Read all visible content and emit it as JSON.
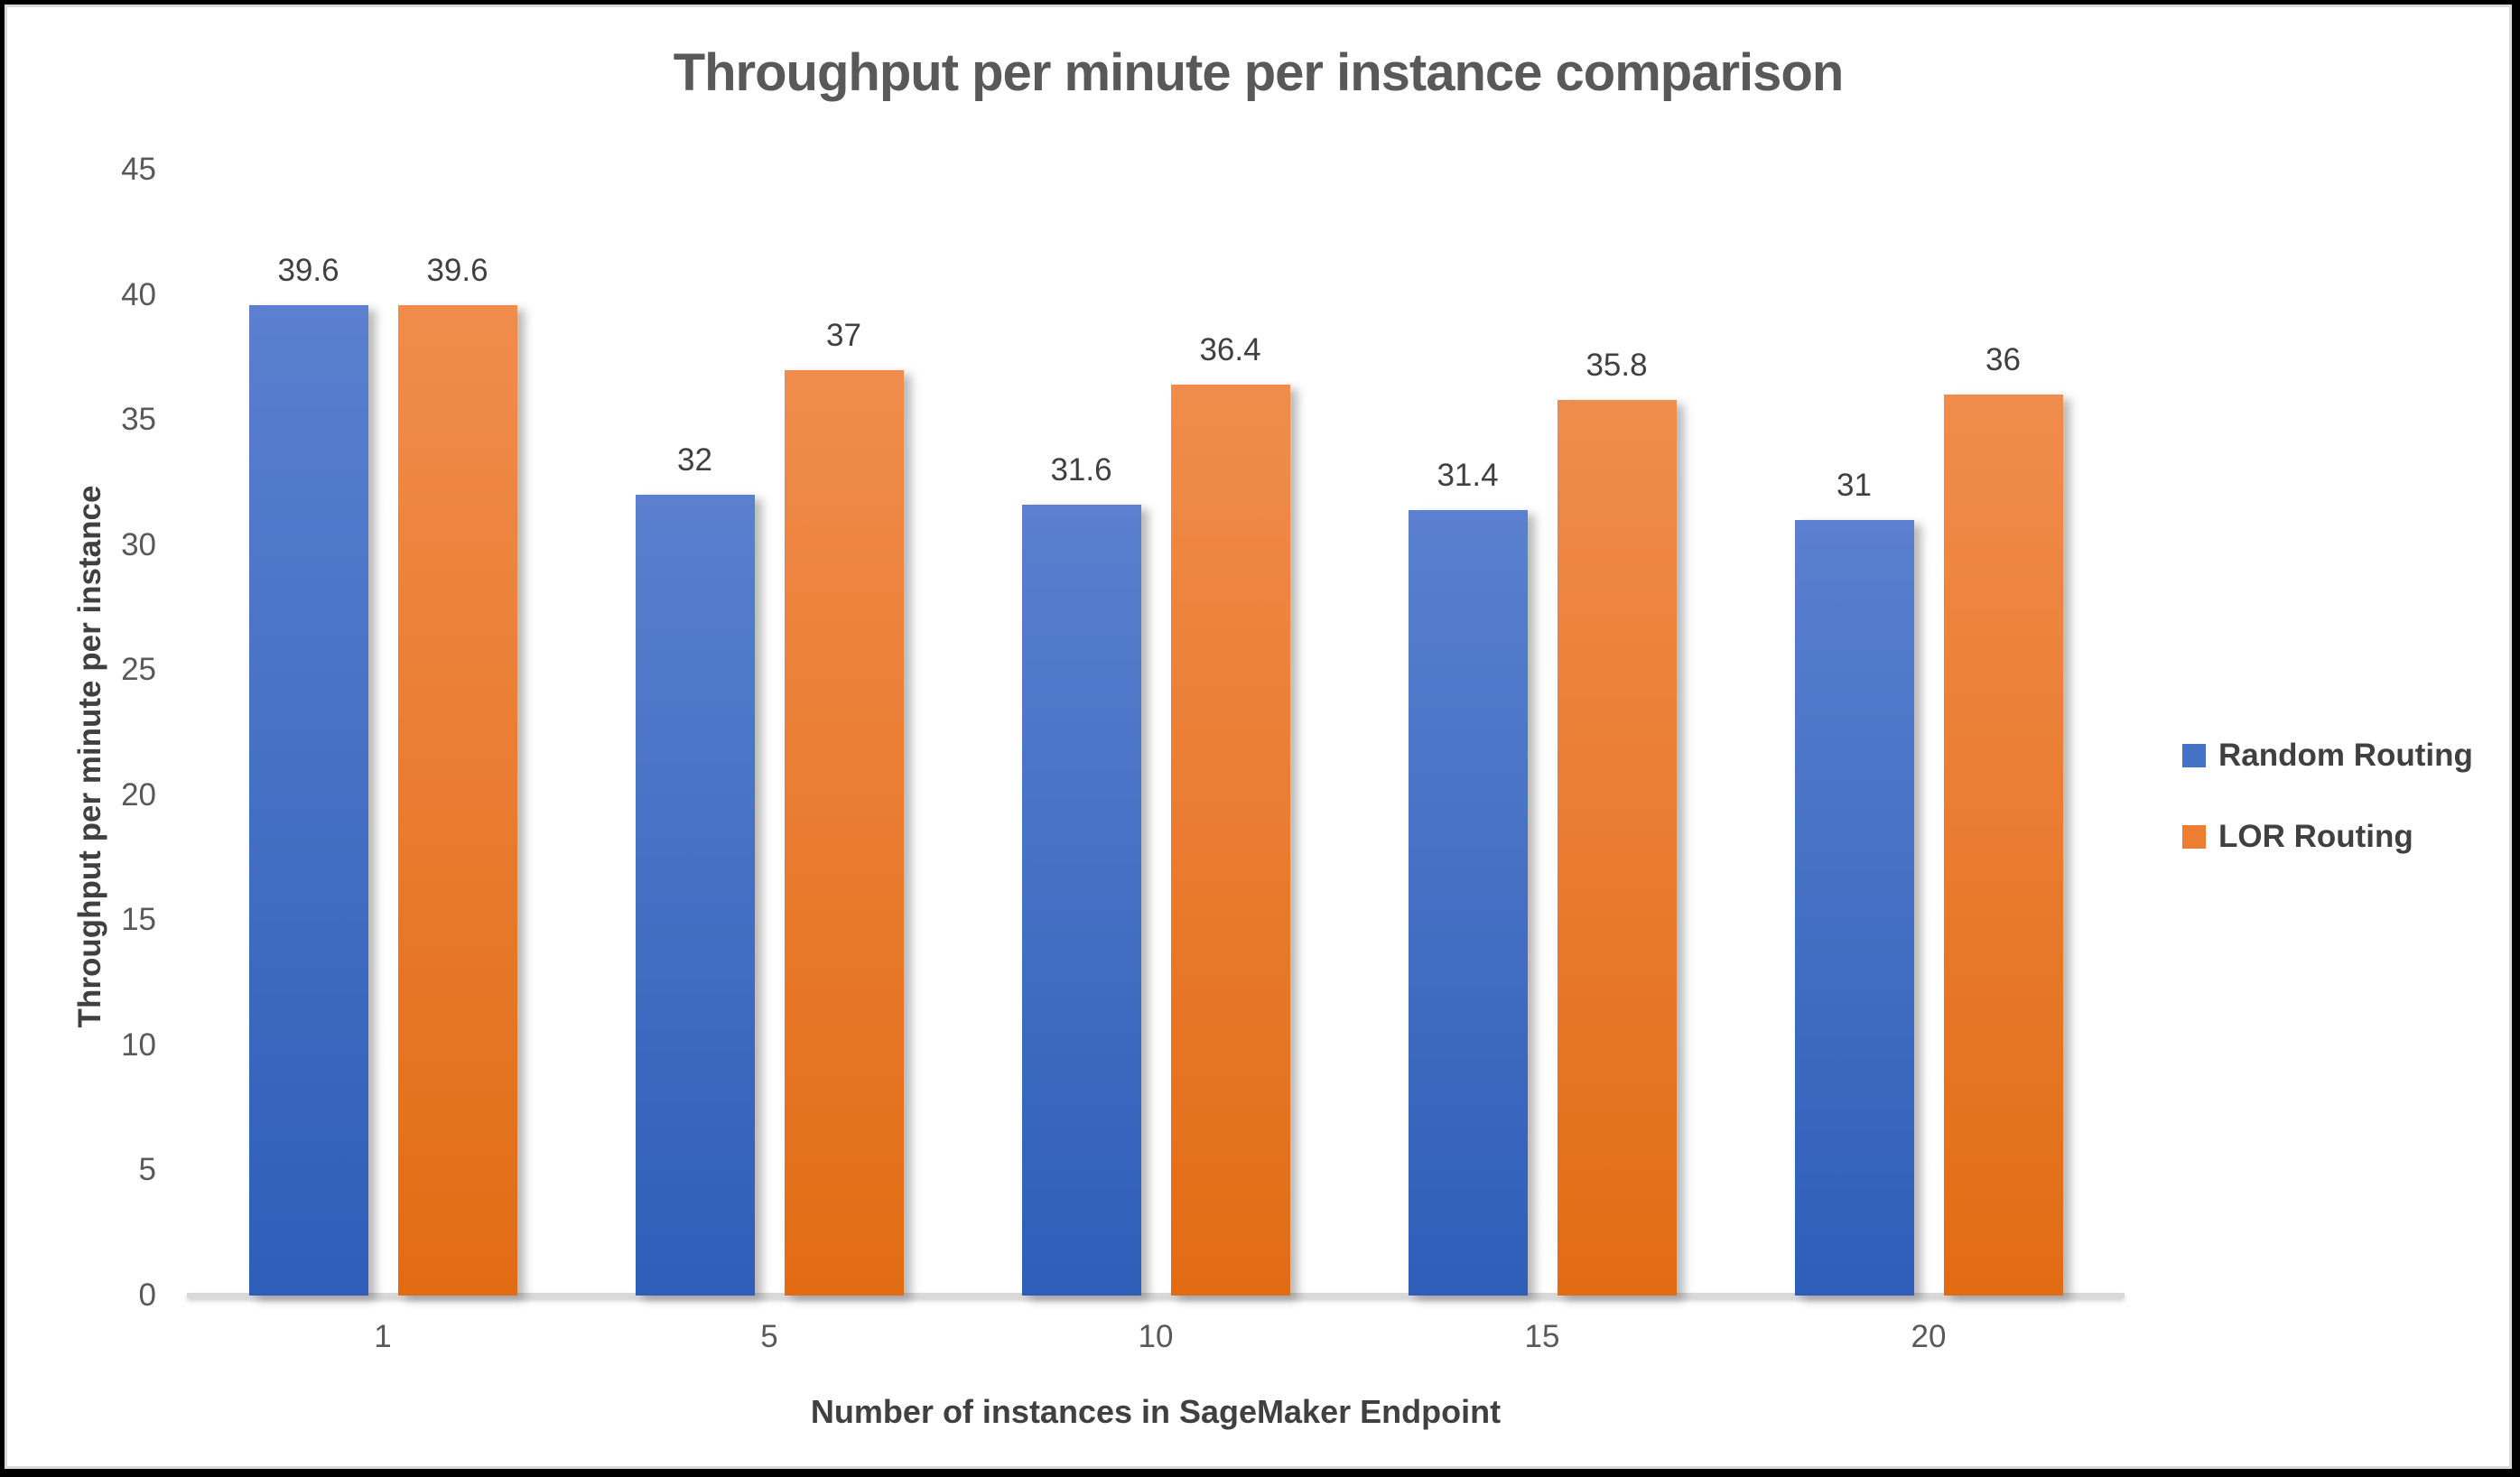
{
  "chart_data": {
    "type": "bar",
    "title": "Throughput per minute per instance comparison",
    "xlabel": "Number of instances in SageMaker Endpoint",
    "ylabel": "Throughput per minute per instance",
    "categories": [
      "1",
      "5",
      "10",
      "15",
      "20"
    ],
    "series": [
      {
        "name": "Random Routing",
        "values": [
          39.6,
          32,
          31.6,
          31.4,
          31
        ],
        "labels": [
          "39.6",
          "32",
          "31.6",
          "31.4",
          "31"
        ],
        "legend_color": "#4472C4",
        "gradient_top": "#5A80CF",
        "gradient_bottom": "#2E5EB8"
      },
      {
        "name": "LOR Routing",
        "values": [
          39.6,
          37,
          36.4,
          35.8,
          36
        ],
        "labels": [
          "39.6",
          "37",
          "36.4",
          "35.8",
          "36"
        ],
        "legend_color": "#ED7D31",
        "gradient_top": "#F08C4C",
        "gradient_bottom": "#E26C14"
      }
    ],
    "y_ticks": [
      0,
      5,
      10,
      15,
      20,
      25,
      30,
      35,
      40,
      45
    ],
    "ylim": [
      0,
      45
    ],
    "grid": false,
    "legend_position": "right",
    "axis_line_color": "#D9D9D9",
    "text_colors": {
      "title": "#595959",
      "tick_labels": "#595959",
      "data_labels": "#404040",
      "axis_titles": "#404040",
      "legend": "#404040"
    }
  }
}
